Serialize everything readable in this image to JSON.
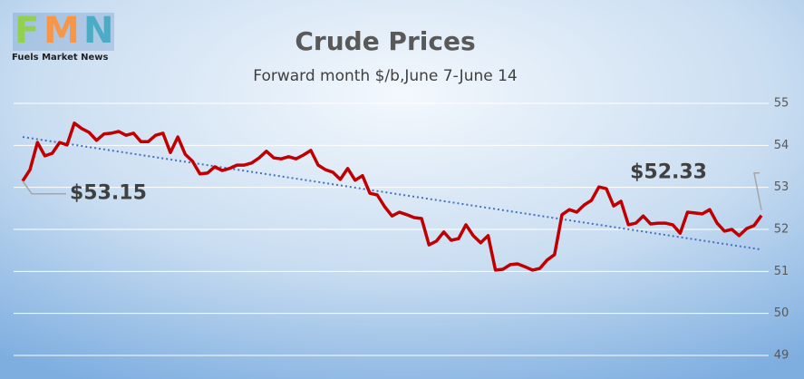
{
  "chart_data": {
    "type": "line",
    "title": "Crude Prices",
    "subtitle": "Forward month $/b,June 7-June 14",
    "logo_letters": [
      "F",
      "M",
      "N"
    ],
    "logo_name": "Fuels Market News",
    "ylim": [
      49,
      55
    ],
    "yticks": [
      49,
      50,
      51,
      52,
      53,
      54,
      55
    ],
    "grid": true,
    "series": [
      {
        "color": "#c00000",
        "values": [
          53.15,
          53.42,
          54.07,
          53.75,
          53.81,
          54.07,
          54.01,
          54.53,
          54.4,
          54.31,
          54.12,
          54.27,
          54.29,
          54.33,
          54.24,
          54.29,
          54.09,
          54.09,
          54.24,
          54.29,
          53.83,
          54.2,
          53.79,
          53.62,
          53.32,
          53.34,
          53.49,
          53.4,
          53.45,
          53.53,
          53.53,
          53.58,
          53.7,
          53.86,
          53.7,
          53.68,
          53.73,
          53.68,
          53.77,
          53.88,
          53.53,
          53.42,
          53.36,
          53.19,
          53.45,
          53.17,
          53.28,
          52.86,
          52.82,
          52.54,
          52.32,
          52.41,
          52.35,
          52.28,
          52.26,
          51.63,
          51.72,
          51.94,
          51.74,
          51.78,
          52.11,
          51.85,
          51.68,
          51.85,
          51.03,
          51.05,
          51.16,
          51.18,
          51.11,
          51.03,
          51.07,
          51.27,
          51.4,
          52.35,
          52.47,
          52.41,
          52.58,
          52.69,
          53.01,
          52.97,
          52.56,
          52.67,
          52.11,
          52.15,
          52.32,
          52.13,
          52.15,
          52.15,
          52.11,
          51.91,
          52.41,
          52.39,
          52.37,
          52.47,
          52.15,
          51.96,
          52.0,
          51.85,
          52.02,
          52.09,
          52.33
        ],
        "value_labels": [
          "$53.15",
          null,
          null,
          null,
          null,
          null,
          null,
          null,
          null,
          null,
          null,
          null,
          null,
          null,
          null,
          null,
          null,
          null,
          null,
          null,
          null,
          null,
          null,
          null,
          null,
          null,
          null,
          null,
          null,
          null,
          null,
          null,
          null,
          null,
          null,
          null,
          null,
          null,
          null,
          null,
          null,
          null,
          null,
          null,
          null,
          null,
          null,
          null,
          null,
          null,
          null,
          null,
          null,
          null,
          null,
          null,
          null,
          null,
          null,
          null,
          null,
          null,
          null,
          null,
          null,
          null,
          null,
          null,
          null,
          null,
          null,
          null,
          null,
          null,
          null,
          null,
          null,
          null,
          null,
          null,
          null,
          null,
          null,
          null,
          null,
          null,
          null,
          null,
          null,
          null,
          null,
          null,
          null,
          null,
          null,
          null,
          null,
          null,
          null,
          null,
          "$52.33"
        ]
      }
    ],
    "trendline": {
      "color": "#4472c4",
      "values": [
        54.2,
        51.52
      ]
    }
  }
}
